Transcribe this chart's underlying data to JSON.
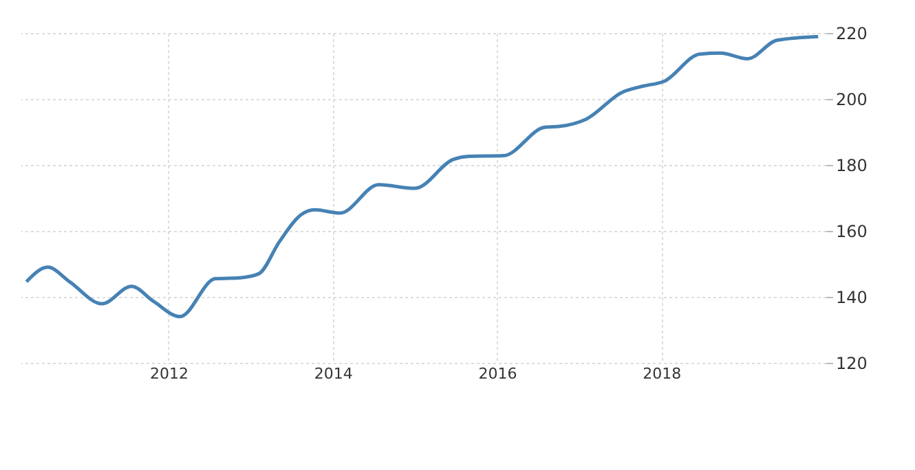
{
  "chart_data": {
    "type": "line",
    "x": [
      2010.27,
      2010.53,
      2010.8,
      2011.19,
      2011.55,
      2011.82,
      2012.14,
      2012.57,
      2012.88,
      2013.1,
      2013.35,
      2013.62,
      2013.78,
      2014.09,
      2014.56,
      2015.0,
      2015.47,
      2015.66,
      2016.08,
      2016.58,
      2016.77,
      2017.08,
      2017.53,
      2017.78,
      2018.03,
      2018.47,
      2018.72,
      2019.05,
      2019.41,
      2019.91
    ],
    "series": [
      {
        "color": "#4682b4",
        "values": [
          144.6,
          149.0,
          144.5,
          137.9,
          143.2,
          138.6,
          134.0,
          145.5,
          145.8,
          147.0,
          156.7,
          165.0,
          166.4,
          165.4,
          174.0,
          172.9,
          181.7,
          182.6,
          182.8,
          191.4,
          191.7,
          193.8,
          202.1,
          203.9,
          205.3,
          213.6,
          213.9,
          212.2,
          217.8,
          218.9
        ]
      }
    ],
    "xlim": [
      2010.2,
      2020.0
    ],
    "xticks": [
      2012,
      2014,
      2016,
      2018
    ],
    "ylim": [
      120,
      220
    ],
    "yticks": [
      120,
      140,
      160,
      180,
      200,
      220
    ],
    "grid": true,
    "marker": "none",
    "line_style": "solid"
  }
}
